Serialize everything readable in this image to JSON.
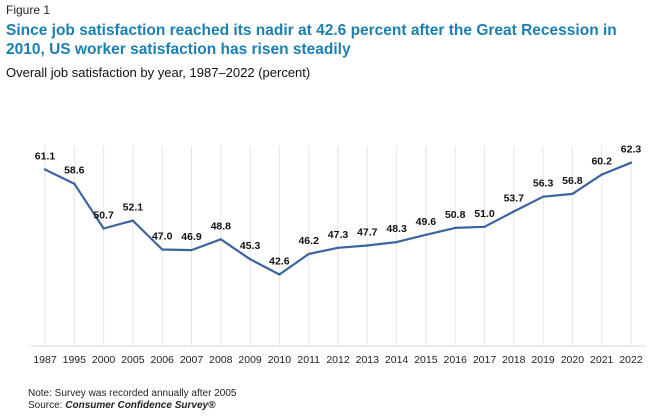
{
  "figure_label": "Figure 1",
  "title": "Since job satisfaction reached its nadir at 42.6 percent after the Great Recession in 2010, US worker satisfaction has risen steadily",
  "subtitle": "Overall job satisfaction by year, 1987–2022 (percent)",
  "note": "Note: Survey was recorded annually after 2005",
  "source_prefix": "Source: ",
  "source_name": "Consumer Confidence Survey®",
  "colors": {
    "title": "#1b7fb3",
    "line": "#3c64a0",
    "grid": "#e6e6e6",
    "axis": "#d9d9d9"
  },
  "chart_data": {
    "type": "line",
    "title": "Overall job satisfaction by year, 1987–2022 (percent)",
    "xlabel": "",
    "ylabel": "",
    "categories": [
      "1987",
      "1995",
      "2000",
      "2005",
      "2006",
      "2007",
      "2008",
      "2009",
      "2010",
      "2011",
      "2012",
      "2013",
      "2014",
      "2015",
      "2016",
      "2017",
      "2018",
      "2019",
      "2020",
      "2021",
      "2022"
    ],
    "series": [
      {
        "name": "Overall job satisfaction (percent)",
        "values": [
          61.1,
          58.6,
          50.7,
          52.1,
          47.0,
          46.9,
          48.8,
          45.3,
          42.6,
          46.2,
          47.3,
          47.7,
          48.3,
          49.6,
          50.8,
          51.0,
          53.7,
          56.3,
          56.8,
          60.2,
          62.3
        ],
        "labels": [
          "61.1",
          "58.6",
          "50.7",
          "52.1",
          "47.0",
          "46.9",
          "48.8",
          "45.3",
          "42.6",
          "46.2",
          "47.3",
          "47.7",
          "48.3",
          "49.6",
          "50.8",
          "51.0",
          "53.7",
          "56.3",
          "56.8",
          "60.2",
          "62.3"
        ]
      }
    ],
    "ylim": [
      30,
      65
    ],
    "grid": "vertical",
    "legend": "none",
    "data_labels": true
  }
}
